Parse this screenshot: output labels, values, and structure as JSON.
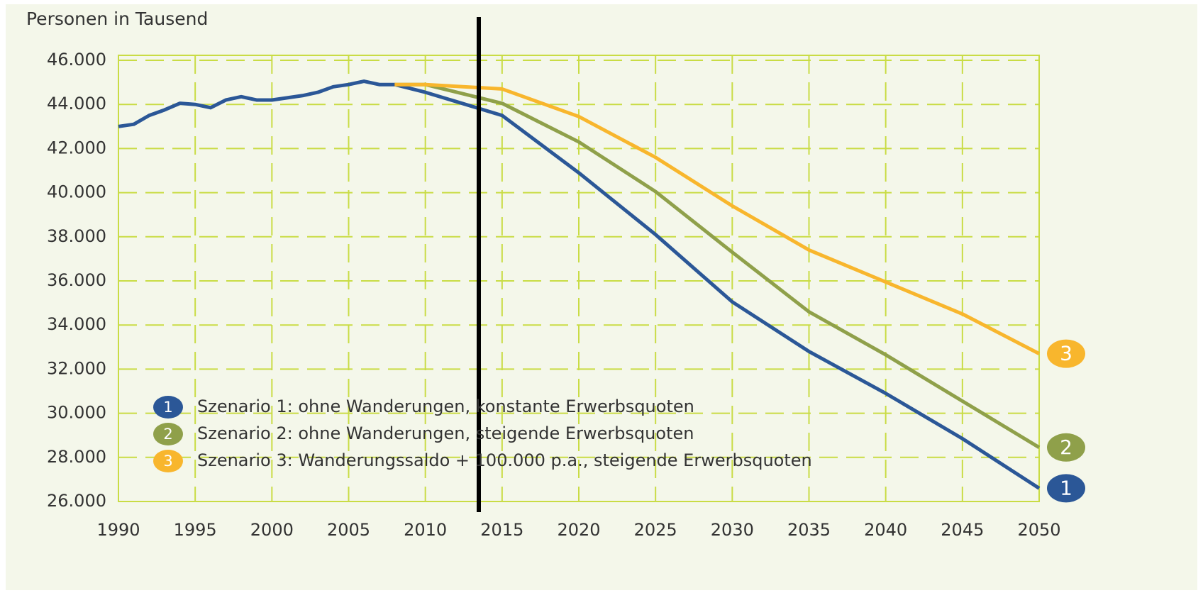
{
  "chart_data": {
    "type": "line",
    "y_axis_label": "Personen in Tausend",
    "x": [
      1990,
      1991,
      1992,
      1993,
      1994,
      1995,
      1996,
      1997,
      1998,
      1999,
      2000,
      2001,
      2002,
      2003,
      2004,
      2005,
      2006,
      2007,
      2008,
      2010,
      2015,
      2020,
      2025,
      2030,
      2035,
      2040,
      2045,
      2050
    ],
    "series": [
      {
        "name": "Szenario 1: ohne Wanderungen, konstante Erwerbsquoten",
        "badge": "1",
        "color": "#2b5797",
        "values": [
          43000,
          43100,
          43500,
          43750,
          44050,
          44000,
          43850,
          44200,
          44350,
          44200,
          44200,
          44300,
          44400,
          44550,
          44800,
          44900,
          45050,
          44900,
          44900,
          44550,
          43500,
          40900,
          38100,
          35050,
          32800,
          30900,
          28850,
          26600
        ]
      },
      {
        "name": "Szenario 2: ohne Wanderungen, steigende Erwerbsquoten",
        "badge": "2",
        "color": "#8fa04a",
        "values": [
          null,
          null,
          null,
          null,
          null,
          null,
          null,
          null,
          null,
          null,
          null,
          null,
          null,
          null,
          null,
          null,
          null,
          null,
          44900,
          44900,
          44050,
          42300,
          40050,
          37300,
          34600,
          32650,
          30550,
          28450
        ]
      },
      {
        "name": "Szenario 3: Wanderungssaldo + 100.000 p.a., steigende Erwerbsquoten",
        "badge": "3",
        "color": "#f8b62d",
        "values": [
          null,
          null,
          null,
          null,
          null,
          null,
          null,
          null,
          null,
          null,
          null,
          null,
          null,
          null,
          null,
          null,
          null,
          null,
          44900,
          44900,
          44700,
          43450,
          41600,
          39400,
          37400,
          35950,
          34500,
          32700
        ]
      }
    ],
    "xlim": [
      1990,
      2050
    ],
    "xticks": [
      1990,
      1995,
      2000,
      2005,
      2010,
      2015,
      2020,
      2025,
      2030,
      2035,
      2040,
      2045,
      2050
    ],
    "ylim": [
      26000,
      46000
    ],
    "yticks": [
      {
        "value": 26000,
        "label": "26.000"
      },
      {
        "value": 28000,
        "label": "28.000"
      },
      {
        "value": 30000,
        "label": "30.000"
      },
      {
        "value": 32000,
        "label": "32.000"
      },
      {
        "value": 34000,
        "label": "34.000"
      },
      {
        "value": 36000,
        "label": "36.000"
      },
      {
        "value": 38000,
        "label": "38.000"
      },
      {
        "value": 40000,
        "label": "40.000"
      },
      {
        "value": 42000,
        "label": "42.000"
      },
      {
        "value": 44000,
        "label": "44.000"
      },
      {
        "value": 46000,
        "label": "46.000"
      }
    ],
    "grid": true,
    "legend": "lower left"
  }
}
